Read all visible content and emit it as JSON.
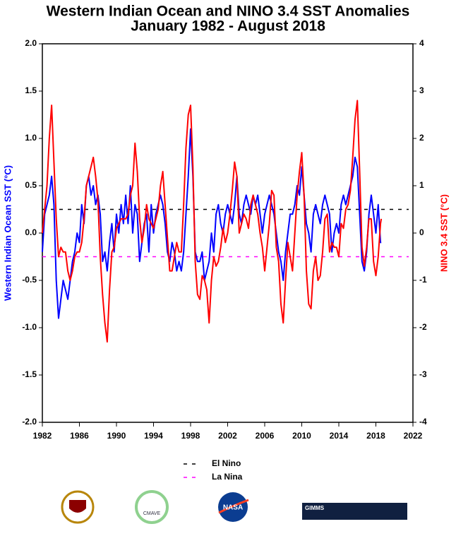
{
  "chart_data": {
    "type": "line",
    "title": "Western Indian Ocean and NINO 3.4 SST Anomalies",
    "subtitle": "January 1982 - August 2018",
    "ylabel": "Western Indian Ocean SST (°C)",
    "y2label": "NINO 3.4 SST (°C)",
    "xlim": [
      1982,
      2022
    ],
    "xticks": [
      1982,
      1986,
      1990,
      1994,
      1998,
      2002,
      2006,
      2010,
      2014,
      2018,
      2022
    ],
    "ylim": [
      -2,
      2
    ],
    "yticks": [
      {
        "value": 2,
        "label": "2.0"
      },
      1.5,
      {
        "value": 1,
        "label": "1.0"
      },
      0.5,
      {
        "value": 0,
        "label": "0.0"
      },
      -0.5,
      {
        "value": -1,
        "label": "-1.0"
      },
      -1.5,
      {
        "value": -2,
        "label": "-2.0"
      }
    ],
    "y2lim": [
      -4,
      4
    ],
    "y2ticks": [
      4,
      3,
      2,
      1,
      0,
      -1,
      -2,
      -3,
      -4
    ],
    "x": [
      1982,
      1982.25,
      1982.5,
      1982.75,
      1983,
      1983.25,
      1983.5,
      1983.75,
      1984,
      1984.25,
      1984.5,
      1984.75,
      1985,
      1985.25,
      1985.5,
      1985.75,
      1986,
      1986.25,
      1986.5,
      1986.75,
      1987,
      1987.25,
      1987.5,
      1987.75,
      1988,
      1988.25,
      1988.5,
      1988.75,
      1989,
      1989.25,
      1989.5,
      1989.75,
      1990,
      1990.25,
      1990.5,
      1990.75,
      1991,
      1991.25,
      1991.5,
      1991.75,
      1992,
      1992.25,
      1992.5,
      1992.75,
      1993,
      1993.25,
      1993.5,
      1993.75,
      1994,
      1994.25,
      1994.5,
      1994.75,
      1995,
      1995.25,
      1995.5,
      1995.75,
      1996,
      1996.25,
      1996.5,
      1996.75,
      1997,
      1997.25,
      1997.5,
      1997.75,
      1998,
      1998.25,
      1998.5,
      1998.75,
      1999,
      1999.25,
      1999.5,
      1999.75,
      2000,
      2000.25,
      2000.5,
      2000.75,
      2001,
      2001.25,
      2001.5,
      2001.75,
      2002,
      2002.25,
      2002.5,
      2002.75,
      2003,
      2003.25,
      2003.5,
      2003.75,
      2004,
      2004.25,
      2004.5,
      2004.75,
      2005,
      2005.25,
      2005.5,
      2005.75,
      2006,
      2006.25,
      2006.5,
      2006.75,
      2007,
      2007.25,
      2007.5,
      2007.75,
      2008,
      2008.25,
      2008.5,
      2008.75,
      2009,
      2009.25,
      2009.5,
      2009.75,
      2010,
      2010.25,
      2010.5,
      2010.75,
      2011,
      2011.25,
      2011.5,
      2011.75,
      2012,
      2012.25,
      2012.5,
      2012.75,
      2013,
      2013.25,
      2013.5,
      2013.75,
      2014,
      2014.25,
      2014.5,
      2014.75,
      2015,
      2015.25,
      2015.5,
      2015.75,
      2016,
      2016.25,
      2016.5,
      2016.75,
      2017,
      2017.25,
      2017.5,
      2017.75,
      2018,
      2018.25,
      2018.5,
      2018.583
    ],
    "series": [
      {
        "name": "Western Indian Ocean",
        "color": "#0000ff",
        "axis": "y",
        "values": [
          -0.2,
          0.2,
          0.3,
          0.4,
          0.6,
          0.3,
          -0.5,
          -0.9,
          -0.7,
          -0.5,
          -0.6,
          -0.7,
          -0.5,
          -0.3,
          -0.2,
          0.0,
          -0.1,
          0.3,
          0.1,
          0.5,
          0.6,
          0.4,
          0.5,
          0.3,
          0.4,
          0.2,
          -0.3,
          -0.2,
          -0.4,
          -0.1,
          0.1,
          -0.2,
          0.2,
          0.0,
          0.3,
          0.1,
          0.4,
          0.1,
          0.5,
          0.0,
          0.3,
          0.2,
          -0.3,
          -0.1,
          0.1,
          0.2,
          -0.2,
          0.3,
          0.0,
          0.2,
          0.3,
          0.4,
          0.3,
          0.1,
          -0.2,
          -0.3,
          -0.1,
          -0.2,
          -0.4,
          -0.3,
          -0.4,
          -0.2,
          0.2,
          0.6,
          1.1,
          0.6,
          -0.2,
          -0.3,
          -0.3,
          -0.2,
          -0.5,
          -0.4,
          -0.3,
          0.0,
          -0.2,
          0.2,
          0.3,
          0.1,
          0.0,
          0.2,
          0.3,
          0.2,
          0.1,
          0.3,
          0.6,
          0.2,
          0.1,
          0.3,
          0.4,
          0.3,
          0.2,
          0.4,
          0.3,
          0.4,
          0.2,
          0.0,
          0.2,
          0.3,
          0.4,
          0.3,
          0.2,
          0.0,
          -0.2,
          -0.3,
          -0.5,
          -0.2,
          0.0,
          0.2,
          0.2,
          0.3,
          0.5,
          0.4,
          0.7,
          0.4,
          0.1,
          0.0,
          -0.2,
          0.2,
          0.3,
          0.2,
          0.1,
          0.3,
          0.4,
          0.3,
          0.2,
          -0.2,
          0.0,
          0.1,
          0.0,
          0.3,
          0.4,
          0.3,
          0.4,
          0.5,
          0.6,
          0.8,
          0.7,
          0.2,
          -0.3,
          -0.4,
          -0.2,
          0.2,
          0.4,
          0.2,
          0.0,
          0.3,
          -0.1,
          -0.1
        ]
      },
      {
        "name": "NINO 3.4",
        "color": "#ff0000",
        "axis": "y2",
        "values": [
          0.0,
          0.5,
          1.0,
          2.0,
          2.7,
          1.5,
          0.3,
          -0.5,
          -0.3,
          -0.4,
          -0.4,
          -0.8,
          -1.0,
          -0.8,
          -0.5,
          -0.4,
          -0.4,
          -0.2,
          0.3,
          1.0,
          1.2,
          1.4,
          1.6,
          1.2,
          0.7,
          -0.5,
          -1.3,
          -1.9,
          -2.3,
          -1.2,
          -0.4,
          -0.3,
          0.1,
          0.2,
          0.3,
          0.3,
          0.3,
          0.4,
          0.8,
          1.0,
          1.9,
          1.3,
          0.3,
          -0.2,
          0.1,
          0.6,
          0.3,
          0.2,
          0.1,
          0.3,
          0.5,
          1.0,
          1.3,
          0.6,
          -0.1,
          -0.8,
          -0.8,
          -0.5,
          -0.2,
          -0.4,
          -0.4,
          0.6,
          1.8,
          2.5,
          2.7,
          1.4,
          -0.6,
          -1.3,
          -1.4,
          -0.9,
          -1.0,
          -1.2,
          -1.9,
          -1.0,
          -0.5,
          -0.7,
          -0.6,
          -0.3,
          0.1,
          -0.2,
          0.0,
          0.4,
          0.9,
          1.5,
          1.2,
          0.0,
          0.2,
          0.4,
          0.3,
          0.1,
          0.6,
          0.8,
          0.6,
          0.4,
          0.0,
          -0.3,
          -0.8,
          -0.3,
          0.2,
          0.9,
          0.8,
          -0.3,
          -0.6,
          -1.5,
          -1.9,
          -1.0,
          -0.2,
          -0.5,
          -0.8,
          0.0,
          0.8,
          1.3,
          1.7,
          0.8,
          -0.8,
          -1.5,
          -1.6,
          -0.8,
          -0.5,
          -1.0,
          -0.9,
          -0.4,
          0.3,
          0.4,
          -0.4,
          -0.2,
          -0.3,
          -0.3,
          -0.5,
          0.2,
          0.1,
          0.5,
          0.6,
          0.9,
          1.6,
          2.4,
          2.8,
          1.3,
          -0.3,
          -0.7,
          -0.3,
          0.3,
          0.3,
          -0.6,
          -0.9,
          -0.5,
          0.2,
          0.3
        ]
      }
    ],
    "reference_lines": [
      {
        "name": "El Nino",
        "value": 0.5,
        "axis": "y2",
        "color": "#000000"
      },
      {
        "name": "La Nina",
        "value": -0.5,
        "axis": "y2",
        "color": "#ff00ff"
      }
    ],
    "logos": [
      "CMAVE",
      "NASA",
      "GIMMS"
    ]
  }
}
